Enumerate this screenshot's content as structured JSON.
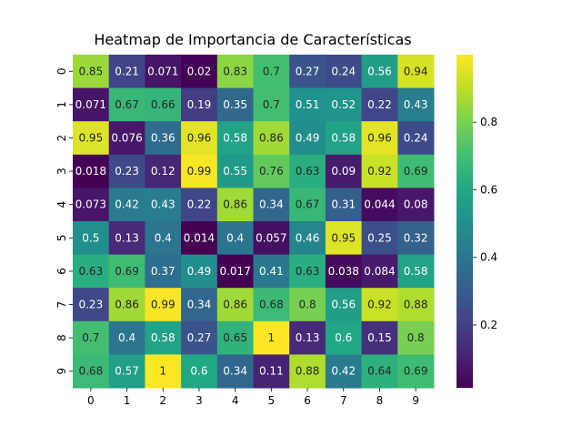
{
  "chart_data": {
    "type": "heatmap",
    "title": "Heatmap de Importancia de Características",
    "xlabel": "",
    "ylabel": "",
    "x_categories": [
      "0",
      "1",
      "2",
      "3",
      "4",
      "5",
      "6",
      "7",
      "8",
      "9"
    ],
    "y_categories": [
      "0",
      "1",
      "2",
      "3",
      "4",
      "5",
      "6",
      "7",
      "8",
      "9"
    ],
    "values": [
      [
        0.85,
        0.21,
        0.071,
        0.02,
        0.83,
        0.7,
        0.27,
        0.24,
        0.56,
        0.94
      ],
      [
        0.071,
        0.67,
        0.66,
        0.19,
        0.35,
        0.7,
        0.51,
        0.52,
        0.22,
        0.43
      ],
      [
        0.95,
        0.076,
        0.36,
        0.96,
        0.58,
        0.86,
        0.49,
        0.58,
        0.96,
        0.24
      ],
      [
        0.018,
        0.23,
        0.12,
        0.99,
        0.55,
        0.76,
        0.63,
        0.09,
        0.92,
        0.69
      ],
      [
        0.073,
        0.42,
        0.43,
        0.22,
        0.86,
        0.34,
        0.67,
        0.31,
        0.044,
        0.08
      ],
      [
        0.5,
        0.13,
        0.4,
        0.014,
        0.4,
        0.057,
        0.46,
        0.95,
        0.25,
        0.32
      ],
      [
        0.63,
        0.69,
        0.37,
        0.49,
        0.017,
        0.41,
        0.63,
        0.038,
        0.084,
        0.58
      ],
      [
        0.23,
        0.86,
        0.99,
        0.34,
        0.86,
        0.68,
        0.8,
        0.56,
        0.92,
        0.88
      ],
      [
        0.7,
        0.4,
        0.58,
        0.27,
        0.65,
        1,
        0.13,
        0.6,
        0.15,
        0.8
      ],
      [
        0.68,
        0.57,
        1,
        0.6,
        0.34,
        0.11,
        0.88,
        0.42,
        0.64,
        0.69
      ]
    ],
    "colormap": "viridis",
    "vmin": 0.014,
    "vmax": 1.0,
    "colorbar_ticks": [
      0.2,
      0.4,
      0.6,
      0.8
    ],
    "colorbar_tick_labels": [
      "0.2",
      "0.4",
      "0.6",
      "0.8"
    ],
    "grid": false,
    "annotations": true
  }
}
